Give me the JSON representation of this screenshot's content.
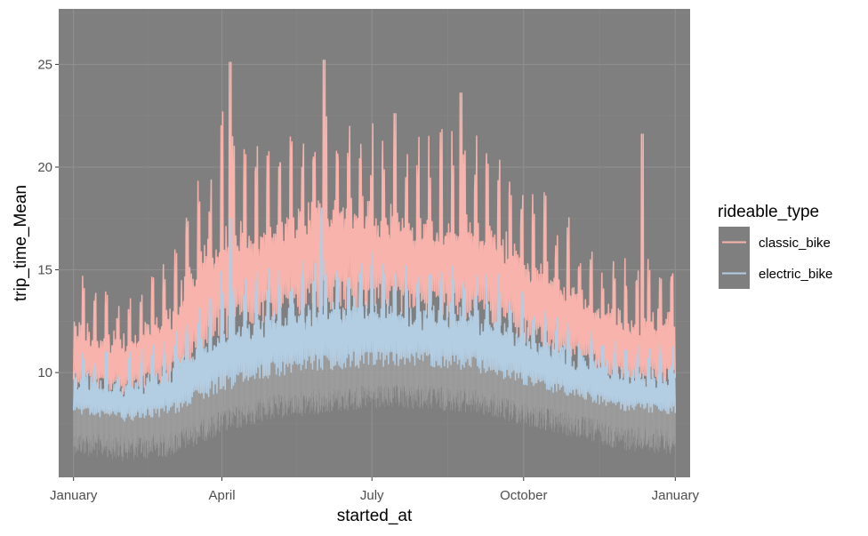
{
  "chart_data": {
    "type": "line",
    "xlabel": "started_at",
    "ylabel": "trip_time_Mean",
    "x_ticks": [
      "January",
      "April",
      "July",
      "October",
      "January"
    ],
    "x_tick_days": [
      0,
      90,
      181,
      273,
      365
    ],
    "x_range_days": [
      -9,
      374
    ],
    "y_ticks": [
      10,
      15,
      20,
      25
    ],
    "ylim": [
      4.9,
      27.7
    ],
    "panel_background": "#7f7f7f",
    "grid": true,
    "legend": {
      "title": "rideable_type",
      "placement": "right",
      "entries": [
        {
          "name": "classic_bike",
          "color": "#f8b4ac"
        },
        {
          "name": "electric_bike",
          "color": "#b3cde3"
        }
      ]
    },
    "series": [
      {
        "name": "classic_bike",
        "color": "#f8b4ac",
        "month_profile": [
          {
            "day": 0,
            "low": 9.0,
            "high": 15.0
          },
          {
            "day": 31,
            "low": 8.6,
            "high": 13.5
          },
          {
            "day": 59,
            "low": 9.2,
            "high": 16.0
          },
          {
            "day": 90,
            "low": 11.0,
            "high": 22.0
          },
          {
            "day": 120,
            "low": 12.0,
            "high": 21.0
          },
          {
            "day": 151,
            "low": 12.5,
            "high": 23.0
          },
          {
            "day": 181,
            "low": 12.5,
            "high": 22.0
          },
          {
            "day": 212,
            "low": 12.3,
            "high": 21.0
          },
          {
            "day": 243,
            "low": 12.0,
            "high": 21.5
          },
          {
            "day": 273,
            "low": 11.0,
            "high": 19.5
          },
          {
            "day": 304,
            "low": 10.0,
            "high": 17.0
          },
          {
            "day": 334,
            "low": 9.2,
            "high": 15.0
          },
          {
            "day": 365,
            "low": 9.0,
            "high": 15.5
          }
        ],
        "peaks": [
          {
            "day": 95,
            "value": 25.1
          },
          {
            "day": 152,
            "value": 25.2
          },
          {
            "day": 195,
            "value": 22.6
          },
          {
            "day": 235,
            "value": 23.6
          },
          {
            "day": 345,
            "value": 21.6
          }
        ]
      },
      {
        "name": "electric_bike",
        "color": "#b3cde3",
        "month_profile": [
          {
            "day": 0,
            "low": 7.8,
            "high": 11.0
          },
          {
            "day": 31,
            "low": 7.5,
            "high": 10.2
          },
          {
            "day": 59,
            "low": 7.7,
            "high": 11.5
          },
          {
            "day": 90,
            "low": 8.8,
            "high": 14.5
          },
          {
            "day": 120,
            "low": 9.5,
            "high": 15.0
          },
          {
            "day": 151,
            "low": 9.8,
            "high": 15.5
          },
          {
            "day": 181,
            "low": 10.0,
            "high": 15.5
          },
          {
            "day": 212,
            "low": 10.0,
            "high": 15.2
          },
          {
            "day": 243,
            "low": 9.8,
            "high": 14.8
          },
          {
            "day": 273,
            "low": 9.2,
            "high": 13.5
          },
          {
            "day": 304,
            "low": 8.6,
            "high": 12.0
          },
          {
            "day": 334,
            "low": 8.0,
            "high": 11.0
          },
          {
            "day": 365,
            "low": 7.8,
            "high": 11.0
          }
        ],
        "peaks": [
          {
            "day": 95,
            "value": 17.5
          },
          {
            "day": 150,
            "value": 18.0
          }
        ]
      }
    ]
  }
}
